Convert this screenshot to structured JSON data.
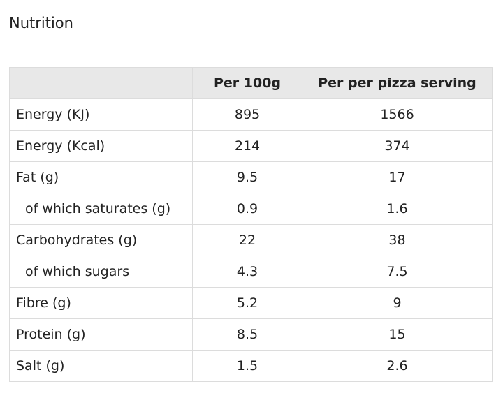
{
  "title": "Nutrition",
  "table": {
    "headers": [
      "",
      "Per 100g",
      "Per per pizza serving"
    ],
    "rows": [
      {
        "label": "Energy (KJ)",
        "per_100g": "895",
        "per_serving": "1566",
        "indent": false
      },
      {
        "label": "Energy (Kcal)",
        "per_100g": "214",
        "per_serving": "374",
        "indent": false
      },
      {
        "label": "Fat (g)",
        "per_100g": "9.5",
        "per_serving": "17",
        "indent": false
      },
      {
        "label": "of which saturates (g)",
        "per_100g": "0.9",
        "per_serving": "1.6",
        "indent": true
      },
      {
        "label": "Carbohydrates (g)",
        "per_100g": "22",
        "per_serving": "38",
        "indent": false
      },
      {
        "label": "of which sugars",
        "per_100g": "4.3",
        "per_serving": "7.5",
        "indent": true
      },
      {
        "label": "Fibre (g)",
        "per_100g": "5.2",
        "per_serving": "9",
        "indent": false
      },
      {
        "label": "Protein (g)",
        "per_100g": "8.5",
        "per_serving": "15",
        "indent": false
      },
      {
        "label": "Salt (g)",
        "per_100g": "1.5",
        "per_serving": "2.6",
        "indent": false
      }
    ]
  }
}
